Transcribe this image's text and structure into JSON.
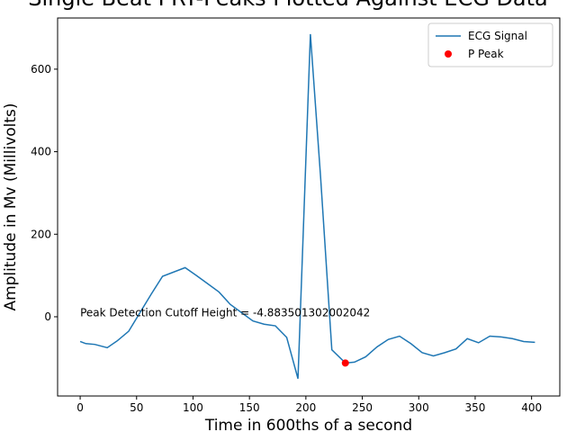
{
  "chart_data": {
    "type": "line",
    "title": "Single Beat PRT-Peaks Plotted Against ECG Data",
    "x_label": "Time in 600ths of a second",
    "y_label": "Amplitude in Mv (Millivolts)",
    "xlim": [
      -20,
      425
    ],
    "ylim": [
      -192,
      724
    ],
    "xticks": [
      0,
      50,
      100,
      150,
      200,
      250,
      300,
      350,
      400
    ],
    "yticks": [
      0,
      200,
      400,
      600
    ],
    "legend": "upper right",
    "series": [
      {
        "name": "ECG Signal",
        "color": "#1f77b4",
        "kind": "line",
        "x": [
          0,
          5,
          13,
          24,
          33,
          43,
          53,
          63,
          73,
          93,
          103,
          113,
          123,
          133,
          143,
          153,
          163,
          173,
          183,
          193,
          204,
          213,
          223,
          235,
          243,
          253,
          263,
          273,
          283,
          293,
          303,
          313,
          323,
          333,
          343,
          353,
          363,
          373,
          383,
          393,
          403
        ],
        "values": [
          -60,
          -65,
          -67,
          -75,
          -58,
          -35,
          10,
          55,
          98,
          119,
          100,
          80,
          60,
          30,
          10,
          -10,
          -18,
          -22,
          -50,
          -150,
          685,
          340,
          -80,
          -112,
          -110,
          -97,
          -73,
          -55,
          -47,
          -65,
          -87,
          -95,
          -87,
          -78,
          -53,
          -63,
          -47,
          -49,
          -53,
          -60,
          -62
        ]
      },
      {
        "name": "P Peak",
        "color": "#ff0000",
        "kind": "marker",
        "x": [
          235
        ],
        "values": [
          -112
        ]
      }
    ],
    "annotation": {
      "text": "Peak Detection Cutoff Height = -4.883501302002042",
      "x": 0,
      "y": 10
    }
  }
}
